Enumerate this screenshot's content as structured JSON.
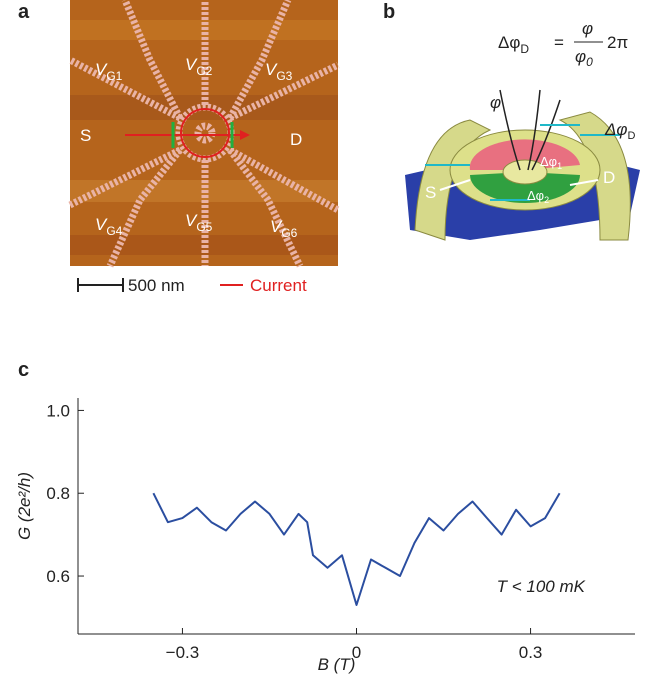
{
  "panels": {
    "a": {
      "label": "a",
      "gates": [
        {
          "v": "V",
          "sub": "G1"
        },
        {
          "v": "V",
          "sub": "G2"
        },
        {
          "v": "V",
          "sub": "G3"
        },
        {
          "v": "V",
          "sub": "G4"
        },
        {
          "v": "V",
          "sub": "G5"
        },
        {
          "v": "V",
          "sub": "G6"
        }
      ],
      "source": "S",
      "drain": "D",
      "scale_bar": "500 nm",
      "legend": "Current"
    },
    "b": {
      "label": "b",
      "equation": {
        "lhs": "Δφ",
        "lhs_sub": "D",
        "equals": "=",
        "numerator": "φ",
        "denominator": "φ",
        "denominator_sub": "0",
        "factor": "2π"
      },
      "flux": "φ",
      "phase_d": "Δφ",
      "phase_d_sub": "D",
      "phase_1": "Δφ",
      "phase_1_sub": "1",
      "phase_2": "Δφ",
      "phase_2_sub": "2",
      "source": "S",
      "drain": "D"
    },
    "c": {
      "label": "c"
    }
  },
  "chart_data": {
    "type": "line",
    "x": [
      -0.35,
      -0.325,
      -0.3,
      -0.275,
      -0.25,
      -0.225,
      -0.2,
      -0.175,
      -0.15,
      -0.125,
      -0.1,
      -0.085,
      -0.075,
      -0.05,
      -0.025,
      0,
      0.025,
      0.05,
      0.075,
      0.1,
      0.125,
      0.15,
      0.175,
      0.2,
      0.225,
      0.25,
      0.275,
      0.3,
      0.325,
      0.35
    ],
    "series": [
      {
        "color": "#2b4ea0",
        "values": [
          0.8,
          0.73,
          0.74,
          0.765,
          0.73,
          0.71,
          0.75,
          0.78,
          0.75,
          0.7,
          0.75,
          0.73,
          0.65,
          0.62,
          0.65,
          0.53,
          0.64,
          0.62,
          0.6,
          0.68,
          0.74,
          0.71,
          0.75,
          0.78,
          0.74,
          0.7,
          0.76,
          0.72,
          0.74,
          0.8
        ]
      }
    ],
    "xlabel": "B (T)",
    "ylabel": "G (2e²/h)",
    "annotation": "T < 100 mK",
    "xlim": [
      -0.48,
      0.48
    ],
    "ylim": [
      0.46,
      1.03
    ],
    "xticks": [
      {
        "value": -0.3,
        "label": "−0.3"
      },
      0,
      0.3
    ],
    "yticks": [
      0.6,
      0.8,
      {
        "value": 1,
        "label": "1.0"
      }
    ]
  }
}
